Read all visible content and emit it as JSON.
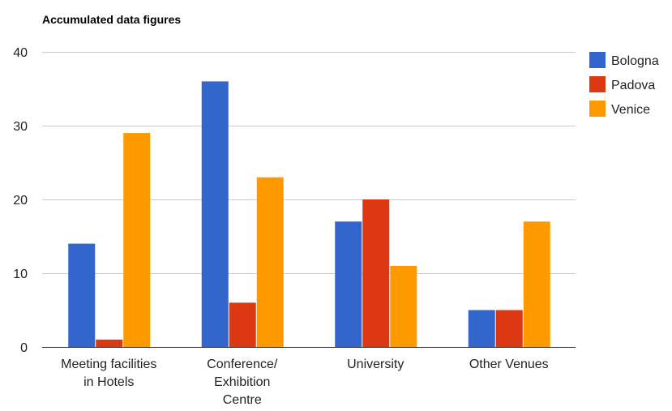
{
  "chart_data": {
    "type": "bar",
    "title": "Accumulated data figures",
    "xlabel": "",
    "ylabel": "",
    "categories": [
      [
        "Meeting facilities",
        "in Hotels"
      ],
      [
        "Conference/",
        "Exhibition",
        "Centre"
      ],
      [
        "University"
      ],
      [
        "Other Venues"
      ]
    ],
    "series": [
      {
        "name": "Bologna",
        "color": "#3366cc",
        "values": [
          14,
          36,
          17,
          5
        ]
      },
      {
        "name": "Padova",
        "color": "#dc3912",
        "values": [
          1,
          6,
          20,
          5
        ]
      },
      {
        "name": "Venice",
        "color": "#ff9900",
        "values": [
          29,
          23,
          11,
          17
        ]
      }
    ],
    "ylim": [
      0,
      40
    ],
    "yticks": [
      0,
      10,
      20,
      30,
      40
    ],
    "grid": true,
    "legend_position": "right"
  }
}
